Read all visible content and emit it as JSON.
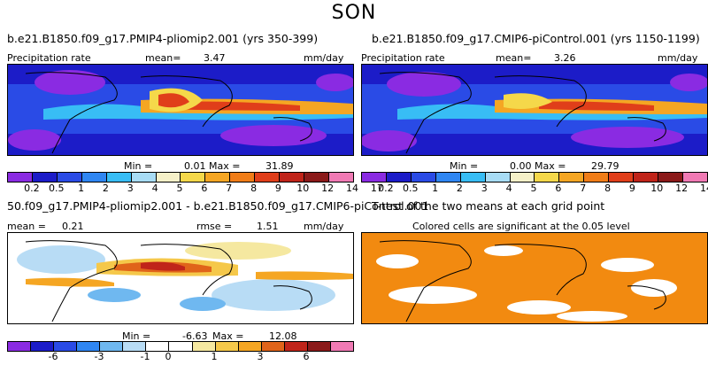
{
  "figure_title": "SON",
  "panel1": {
    "title": "b.e21.B1850.f09_g17.PMIP4-pliomip2.001 (yrs 350-399)",
    "variable": "Precipitation rate",
    "mean_label": "mean=",
    "mean_value": "3.47",
    "units": "mm/day",
    "min_label": "Min =",
    "min_value": "0.01",
    "max_label": "Max =",
    "max_value": "31.89"
  },
  "panel2": {
    "title": "b.e21.B1850.f09_g17.CMIP6-piControl.001 (yrs 1150-1199)",
    "variable": "Precipitation rate",
    "mean_label": "mean=",
    "mean_value": "3.26",
    "units": "mm/day",
    "min_label": "Min =",
    "min_value": "0.00",
    "max_label": "Max =",
    "max_value": "29.79"
  },
  "panel3": {
    "title": "50.f09_g17.PMIP4-pliomip2.001 - b.e21.B1850.f09_g17.CMIP6-piControl.001",
    "mean_label": "mean =",
    "mean_value": "0.21",
    "rmse_label": "rmse =",
    "rmse_value": "1.51",
    "units": "mm/day",
    "min_label": "Min =",
    "min_value": "-6.63",
    "max_label": "Max =",
    "max_value": "12.08"
  },
  "panel4": {
    "title": "T-test of the two means at each grid point",
    "subtitle": "Colored cells are significant at the 0.05 level"
  },
  "colorbar_precip": {
    "colors": [
      "#8a2be2",
      "#1c1cc8",
      "#2a4be6",
      "#2f86f2",
      "#38bdf5",
      "#a8dcf5",
      "#f5f0c8",
      "#f5d84a",
      "#f5a623",
      "#f07d18",
      "#e03e1a",
      "#c0241a",
      "#8b1a1a",
      "#f07ab4"
    ],
    "ticks": [
      "0.2",
      "0.5",
      "1",
      "2",
      "3",
      "4",
      "5",
      "6",
      "7",
      "8",
      "9",
      "10",
      "12",
      "14",
      "17"
    ]
  },
  "colorbar_diff": {
    "colors": [
      "#8a2be2",
      "#1c1cc8",
      "#2a4be6",
      "#2f86f2",
      "#6fb8f0",
      "#b8dcf5",
      "#ffffff",
      "#ffffff",
      "#f5e8a0",
      "#f5c84a",
      "#f5a623",
      "#e0641a",
      "#c0241a",
      "#8b1a1a",
      "#f07ab4"
    ],
    "ticks": [
      "-6",
      "-3",
      "-1",
      "0",
      "1",
      "3",
      "6"
    ]
  },
  "ttest_color": "#f28a10"
}
